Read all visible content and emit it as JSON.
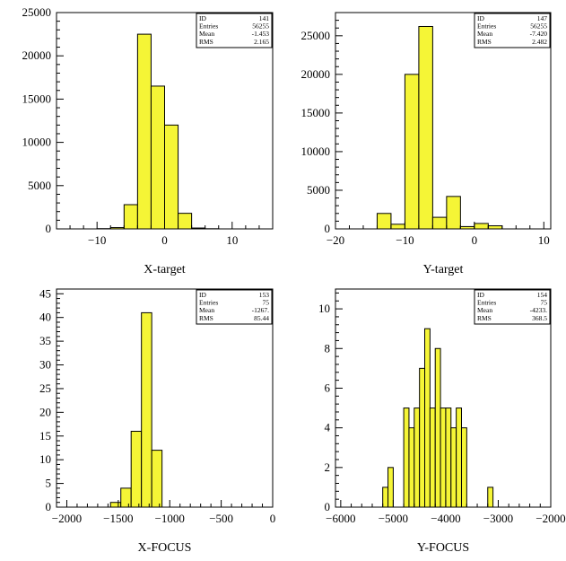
{
  "chart_data": [
    {
      "type": "bar",
      "xlabel": "X-target",
      "xlim": [
        -16,
        16
      ],
      "ylim": [
        0,
        25000
      ],
      "xticks": [
        -10,
        0,
        10
      ],
      "yticks": [
        0,
        5000,
        10000,
        15000,
        20000,
        25000
      ],
      "bin_edges": [
        -10,
        -8,
        -6,
        -4,
        -2,
        0,
        2,
        4,
        6,
        8
      ],
      "values": [
        30,
        150,
        2800,
        22500,
        16500,
        12000,
        1800,
        100,
        20
      ],
      "stats": {
        "ID": "141",
        "Entries": "56255",
        "Mean": "-1.453",
        "RMS": "2.165"
      }
    },
    {
      "type": "bar",
      "xlabel": "Y-target",
      "xlim": [
        -20,
        11
      ],
      "ylim": [
        0,
        28000
      ],
      "xticks": [
        -20,
        -10,
        0,
        10
      ],
      "yticks": [
        0,
        5000,
        10000,
        15000,
        20000,
        25000
      ],
      "bin_edges": [
        -14,
        -12,
        -10,
        -8,
        -6,
        -4,
        -2,
        0,
        2,
        4
      ],
      "values": [
        2000,
        600,
        20000,
        26200,
        1500,
        4200,
        300,
        700,
        400
      ],
      "stats": {
        "ID": "147",
        "Entries": "56255",
        "Mean": "-7.420",
        "RMS": "2.482"
      }
    },
    {
      "type": "bar",
      "xlabel": "X-FOCUS",
      "xlim": [
        -2100,
        0
      ],
      "ylim": [
        0,
        46
      ],
      "xticks": [
        -2000,
        -1500,
        -1000,
        -500,
        0
      ],
      "yticks": [
        0,
        5,
        10,
        15,
        20,
        25,
        30,
        35,
        40,
        45
      ],
      "bin_edges": [
        -1575,
        -1475,
        -1375,
        -1275,
        -1175,
        -1075
      ],
      "values": [
        1,
        4,
        16,
        41,
        12
      ],
      "stats": {
        "ID": "153",
        "Entries": "75",
        "Mean": "-1267.",
        "RMS": "85.44"
      }
    },
    {
      "type": "bar",
      "xlabel": "Y-FOCUS",
      "xlim": [
        -6100,
        -2000
      ],
      "ylim": [
        0,
        11
      ],
      "xticks": [
        -6000,
        -5000,
        -4000,
        -3000,
        -2000
      ],
      "yticks": [
        0,
        2,
        4,
        6,
        8,
        10
      ],
      "bin_edges": [
        -5200,
        -5100,
        -5000,
        -4900,
        -4800,
        -4700,
        -4600,
        -4500,
        -4400,
        -4300,
        -4200,
        -4100,
        -4000,
        -3900,
        -3800,
        -3700,
        -3600,
        -3500,
        -3400,
        -3300,
        -3200,
        -3100,
        -3000
      ],
      "values": [
        1,
        2,
        0,
        0,
        5,
        4,
        5,
        7,
        9,
        5,
        8,
        5,
        5,
        4,
        5,
        4,
        0,
        0,
        0,
        0,
        1,
        0
      ],
      "stats": {
        "ID": "154",
        "Entries": "75",
        "Mean": "-4233.",
        "RMS": "368.5"
      }
    }
  ]
}
